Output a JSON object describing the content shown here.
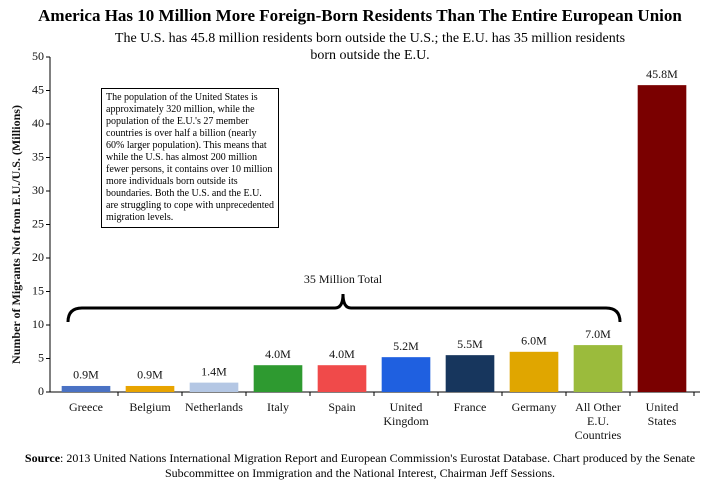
{
  "chart_data": {
    "type": "bar",
    "title": "America Has 10 Million More Foreign-Born Residents Than The Entire European Union",
    "subtitle": "The U.S. has 45.8 million residents born outside the U.S.; the E.U. has 35 million residents born outside the E.U.",
    "y_label": "Number of Migrants Not from E.U./U.S. (Millions)",
    "categories": [
      "Greece",
      "Belgium",
      "Netherlands",
      "Italy",
      "Spain",
      "United Kingdom",
      "France",
      "Germany",
      "All Other E.U. Countries",
      "United States"
    ],
    "values": [
      0.9,
      0.9,
      1.4,
      4.0,
      4.0,
      5.2,
      5.5,
      6.0,
      7.0,
      45.8
    ],
    "value_labels": [
      "0.9M",
      "0.9M",
      "1.4M",
      "4.0M",
      "4.0M",
      "5.2M",
      "5.5M",
      "6.0M",
      "7.0M",
      "45.8M"
    ],
    "colors": [
      "#4a72c4",
      "#e8a400",
      "#b4c7e4",
      "#2e9a30",
      "#f04a4a",
      "#1f60e0",
      "#17365d",
      "#e0a600",
      "#9bbb3c",
      "#7a0000"
    ],
    "ylim": [
      0,
      50
    ],
    "yticks": [
      0,
      5,
      10,
      15,
      20,
      25,
      30,
      35,
      40,
      45,
      50
    ],
    "grid": false,
    "bracket_label": "35 Million Total",
    "note": "The population of the United States is approximately 320 million, while the population of the E.U.'s 27 member countries is over half a billion (nearly 60% larger population). This means that while the U.S. has almost 200 million fewer persons, it contains over 10 million more individuals born outside its boundaries. Both the U.S. and the E.U. are struggling to cope with unprecedented migration levels.",
    "source_label": "Source",
    "source": ": 2013 United Nations International Migration Report and European Commission's Eurostat Database. Chart produced by the Senate Subcommittee on Immigration and the National Interest, Chairman Jeff Sessions."
  }
}
